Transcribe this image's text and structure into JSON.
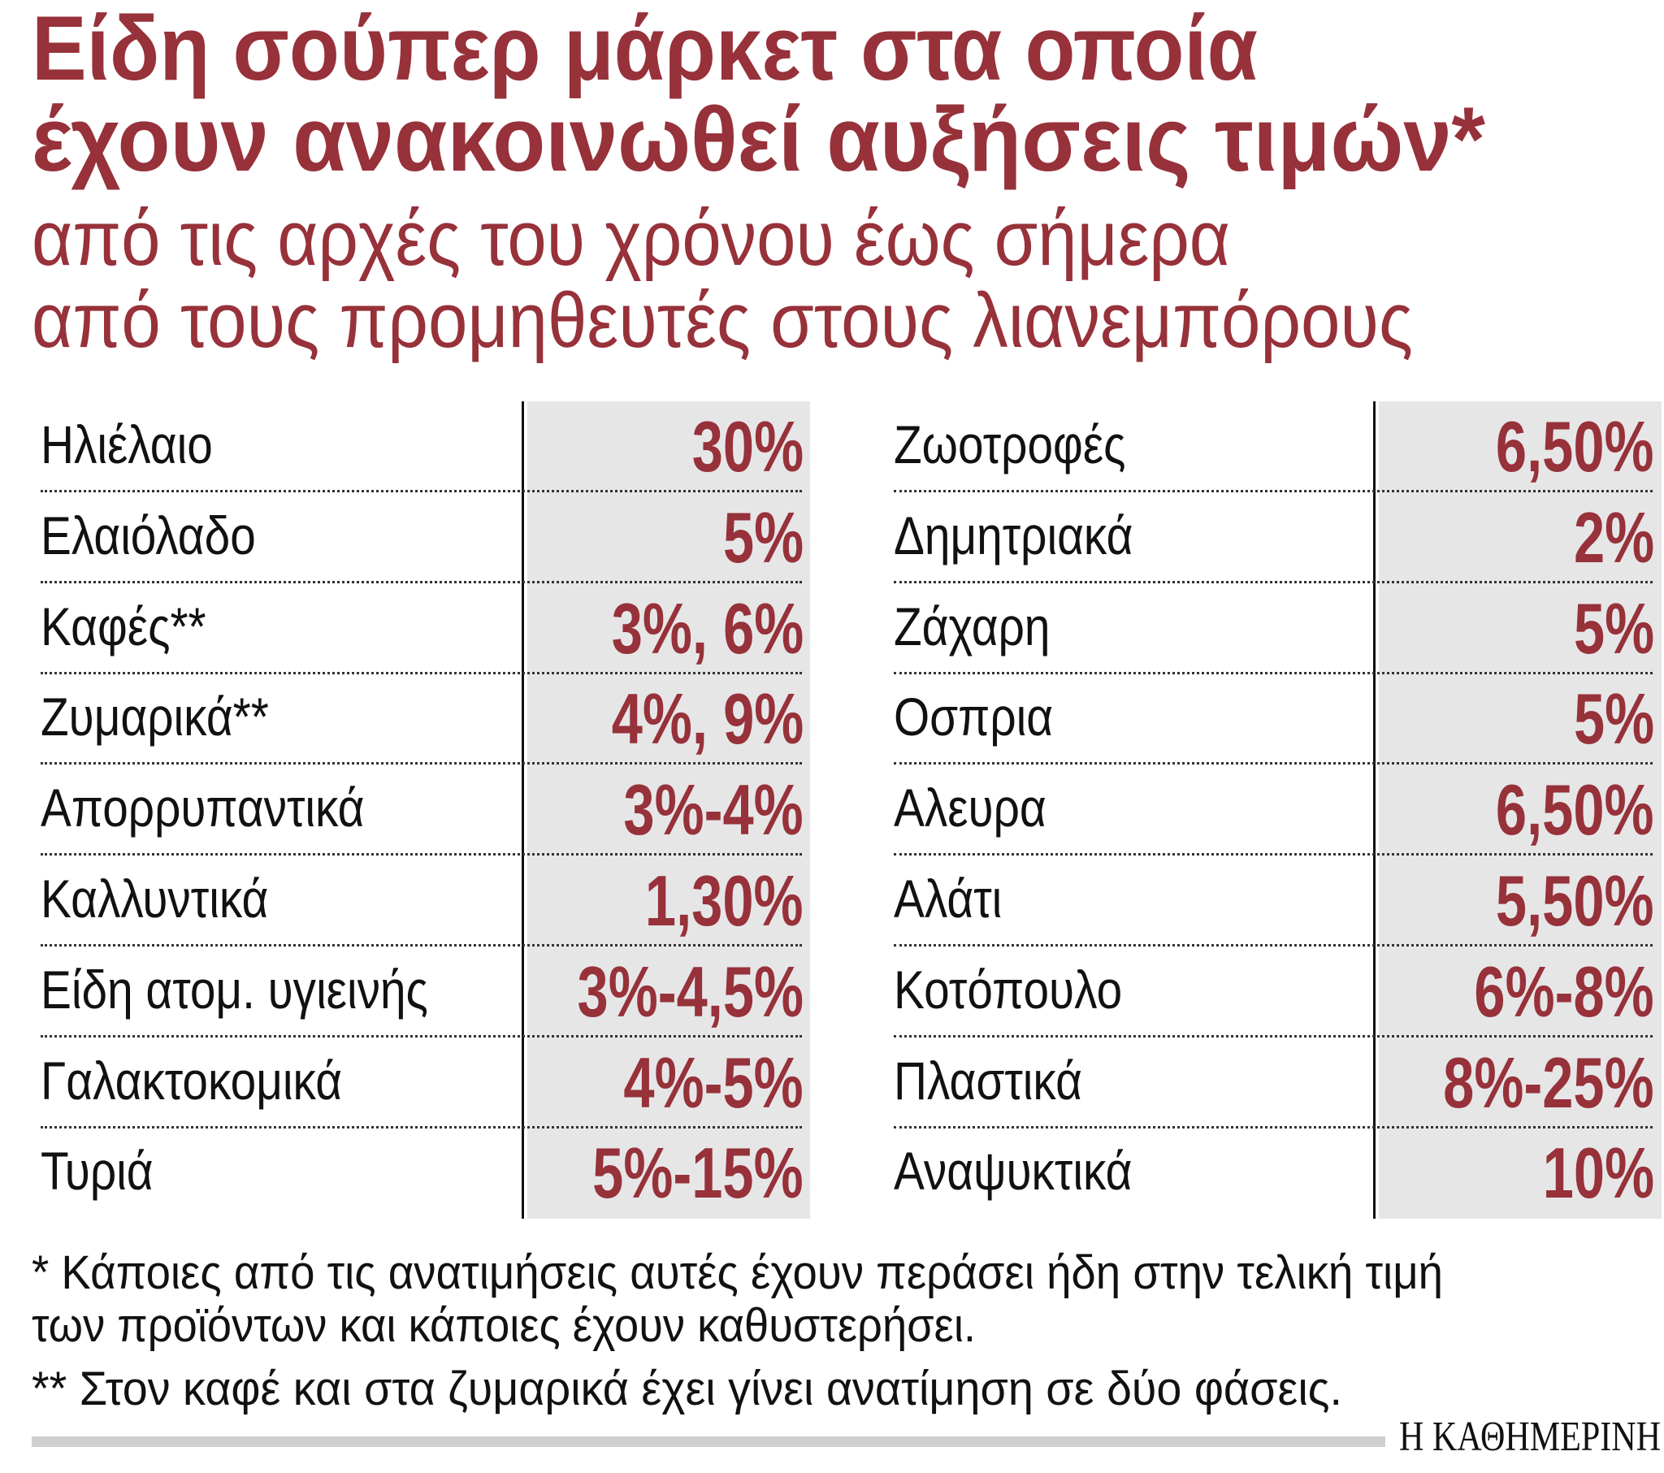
{
  "title": {
    "line1": "Είδη σούπερ μάρκετ στα οποία",
    "line2": "έχουν ανακοινωθεί αυξήσεις τιμών*"
  },
  "subtitle": {
    "line1": "από τις αρχές του χρόνου έως σήμερα",
    "line2": "από τους προμηθευτές στους λιανεμπόρους"
  },
  "table": {
    "left": [
      {
        "item": "Ηλιέλαιο",
        "increase": "30%"
      },
      {
        "item": "Ελαιόλαδο",
        "increase": "5%"
      },
      {
        "item": "Καφές**",
        "increase": "3%, 6%"
      },
      {
        "item": "Ζυμαρικά**",
        "increase": "4%, 9%"
      },
      {
        "item": "Απορρυπαντικά",
        "increase": "3%-4%"
      },
      {
        "item": "Καλλυντικά",
        "increase": "1,30%"
      },
      {
        "item": "Είδη ατομ. υγιεινής",
        "increase": "3%-4,5%"
      },
      {
        "item": "Γαλακτοκομικά",
        "increase": "4%-5%"
      },
      {
        "item": "Τυριά",
        "increase": "5%-15%"
      }
    ],
    "right": [
      {
        "item": "Ζωοτροφές",
        "increase": "6,50%"
      },
      {
        "item": "Δημητριακά",
        "increase": "2%"
      },
      {
        "item": "Ζάχαρη",
        "increase": "5%"
      },
      {
        "item": "Οσπρια",
        "increase": "5%"
      },
      {
        "item": "Αλευρα",
        "increase": "6,50%"
      },
      {
        "item": "Αλάτι",
        "increase": "5,50%"
      },
      {
        "item": "Κοτόπουλο",
        "increase": "6%-8%"
      },
      {
        "item": "Πλαστικά",
        "increase": "8%-25%"
      },
      {
        "item": "Αναψυκτικά",
        "increase": "10%"
      }
    ]
  },
  "footnotes": {
    "note1_line1": "* Κάποιες από τις ανατιμήσεις αυτές έχουν περάσει ήδη στην τελική τιμή",
    "note1_line2": "των προϊόντων και κάποιες έχουν καθυστερήσει.",
    "note2": "** Στον καφέ και στα ζυμαρικά έχει γίνει ανατίμηση σε δύο φάσεις."
  },
  "logo": "Η ΚΑΘΗΜΕΡΙΝΗ",
  "colors": {
    "accent": "#97313a",
    "value_column_bg": "#e6e6e7",
    "text": "#111111"
  }
}
